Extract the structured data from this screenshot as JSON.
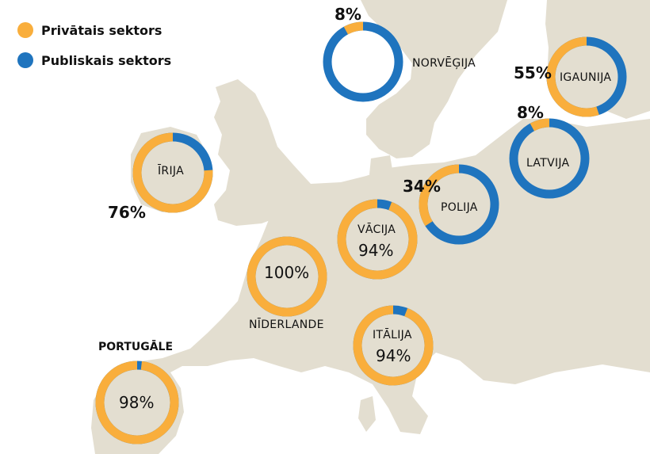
{
  "colors": {
    "private": "#F9AE3C",
    "public": "#1F74BE",
    "land": "#E3DED0",
    "sea": "#FFFFFF"
  },
  "legend": [
    {
      "label": "Privātais sektors",
      "color": "#F9AE3C"
    },
    {
      "label": "Publiskais sektors",
      "color": "#1F74BE"
    }
  ],
  "countries": [
    {
      "id": "norvegija",
      "name": "NORVĒĢIJA",
      "private_pct": 8,
      "percent_label": "8%"
    },
    {
      "id": "igaunija",
      "name": "IGAUNIJA",
      "private_pct": 55,
      "percent_label": "55%"
    },
    {
      "id": "latvija",
      "name": "LATVIJA",
      "private_pct": 8,
      "percent_label": "8%"
    },
    {
      "id": "irija",
      "name": "ĪRIJA",
      "private_pct": 76,
      "percent_label": "76%"
    },
    {
      "id": "polija",
      "name": "POLIJA",
      "private_pct": 34,
      "percent_label": "34%"
    },
    {
      "id": "vacija",
      "name": "VĀCIJA",
      "private_pct": 94,
      "percent_label": "94%"
    },
    {
      "id": "niderlande",
      "name": "NĪDERLANDE",
      "private_pct": 100,
      "percent_label": "100%"
    },
    {
      "id": "italija",
      "name": "ITĀLIJA",
      "private_pct": 94,
      "percent_label": "94%"
    },
    {
      "id": "portugale",
      "name": "PORTUGĀLE",
      "private_pct": 98,
      "percent_label": "98%"
    }
  ]
}
